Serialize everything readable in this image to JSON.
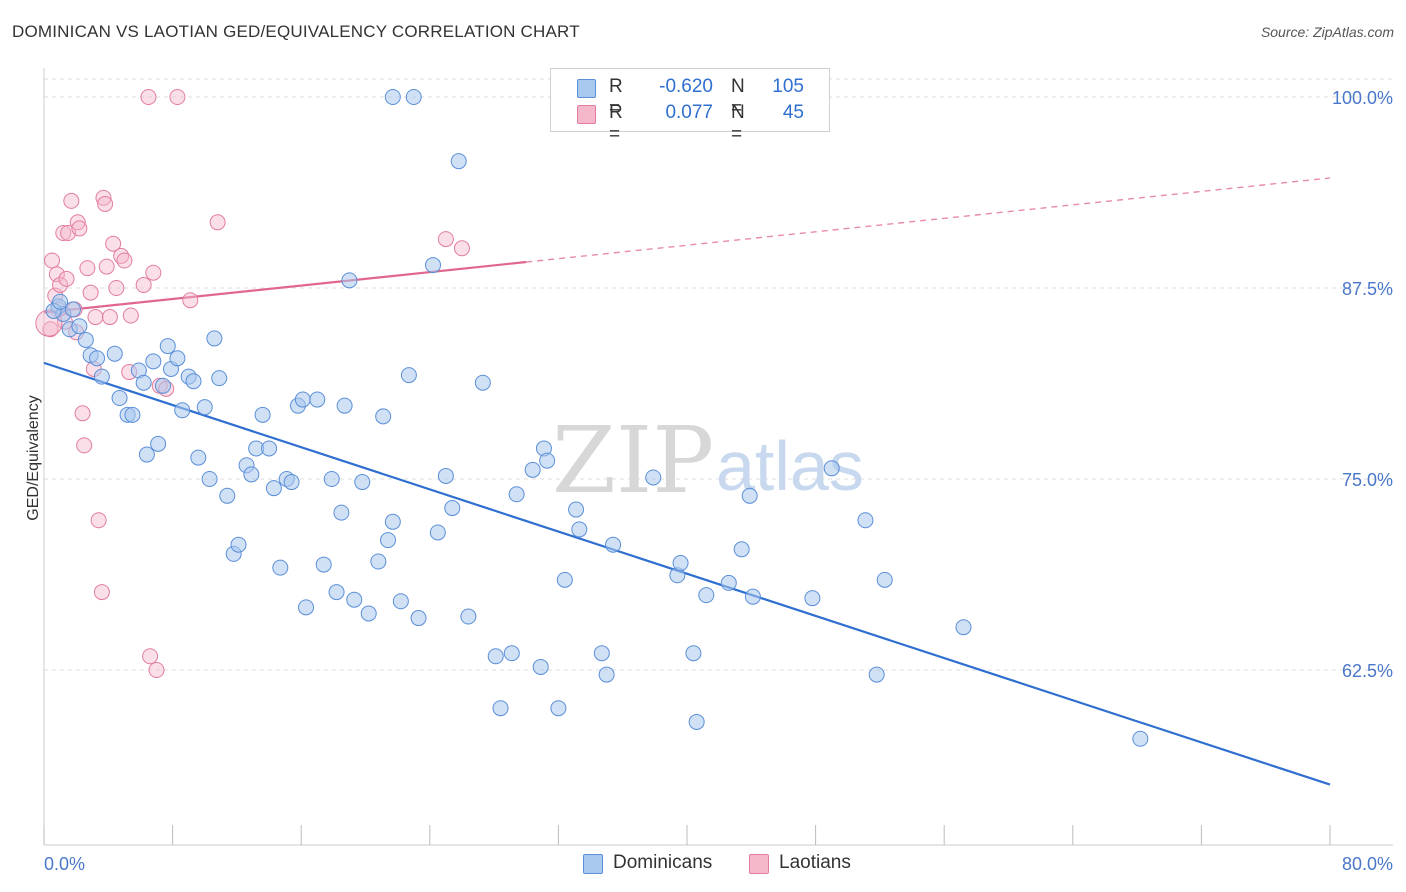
{
  "title": "DOMINICAN VS LAOTIAN GED/EQUIVALENCY CORRELATION CHART",
  "source": "Source: ZipAtlas.com",
  "watermark": {
    "zip": "ZIP",
    "atlas": "atlas"
  },
  "legend": {
    "rows": [
      {
        "r_label": "R =",
        "r_value": "-0.620",
        "n_label": "N =",
        "n_value": "105",
        "color": "#a9c8ee"
      },
      {
        "r_label": "R =",
        "r_value": "0.077",
        "n_label": "N =",
        "n_value": "45",
        "color": "#f5b8cb"
      }
    ]
  },
  "bottom_legend": [
    {
      "label": "Dominicans",
      "color": "#a9c8ee"
    },
    {
      "label": "Laotians",
      "color": "#f5b8cb"
    }
  ],
  "chart_data": {
    "type": "scatter",
    "title": "DOMINICAN VS LAOTIAN GED/EQUIVALENCY CORRELATION CHART",
    "xlabel": "",
    "ylabel": "GED/Equivalency",
    "xlim": [
      0,
      80
    ],
    "ylim": [
      51.5,
      101
    ],
    "x_tick_labels": [
      "0.0%",
      "80.0%"
    ],
    "y_ticks": [
      62.5,
      75.0,
      87.5,
      100.0
    ],
    "y_tick_labels": [
      "62.5%",
      "75.0%",
      "87.5%",
      "100.0%"
    ],
    "grid": true,
    "legend_placement": "top-center",
    "series": [
      {
        "name": "Dominicans",
        "color": "#a9c8ee",
        "R": -0.62,
        "N": 105,
        "trend": {
          "x0": 0,
          "y0": 82.6,
          "x1": 80,
          "y1": 55.0
        },
        "points": [
          [
            0.9,
            86.3
          ],
          [
            1.2,
            85.8
          ],
          [
            1.6,
            84.8
          ],
          [
            1.8,
            86.1
          ],
          [
            2.2,
            85.0
          ],
          [
            2.6,
            84.1
          ],
          [
            2.9,
            83.1
          ],
          [
            3.3,
            82.9
          ],
          [
            3.6,
            81.7
          ],
          [
            4.4,
            83.2
          ],
          [
            4.7,
            80.3
          ],
          [
            5.2,
            79.2
          ],
          [
            5.5,
            79.2
          ],
          [
            5.9,
            82.1
          ],
          [
            6.2,
            81.3
          ],
          [
            6.4,
            76.6
          ],
          [
            6.8,
            82.7
          ],
          [
            7.1,
            77.3
          ],
          [
            7.4,
            81.1
          ],
          [
            7.7,
            83.7
          ],
          [
            7.9,
            82.2
          ],
          [
            8.3,
            82.9
          ],
          [
            8.6,
            79.5
          ],
          [
            9.0,
            81.7
          ],
          [
            9.3,
            81.4
          ],
          [
            9.6,
            76.4
          ],
          [
            10.0,
            79.7
          ],
          [
            10.3,
            75.0
          ],
          [
            10.6,
            84.2
          ],
          [
            10.9,
            81.6
          ],
          [
            11.4,
            73.9
          ],
          [
            11.8,
            70.1
          ],
          [
            12.1,
            70.7
          ],
          [
            12.6,
            75.9
          ],
          [
            12.9,
            75.3
          ],
          [
            13.2,
            77.0
          ],
          [
            13.6,
            79.2
          ],
          [
            14.0,
            77.0
          ],
          [
            14.3,
            74.4
          ],
          [
            14.7,
            69.2
          ],
          [
            15.1,
            75.0
          ],
          [
            15.4,
            74.8
          ],
          [
            15.8,
            79.8
          ],
          [
            16.1,
            80.2
          ],
          [
            16.3,
            66.6
          ],
          [
            17.0,
            80.2
          ],
          [
            17.4,
            69.4
          ],
          [
            17.9,
            75.0
          ],
          [
            18.2,
            67.6
          ],
          [
            18.5,
            72.8
          ],
          [
            18.7,
            79.8
          ],
          [
            19.3,
            67.1
          ],
          [
            19.8,
            74.8
          ],
          [
            20.2,
            66.2
          ],
          [
            20.8,
            69.6
          ],
          [
            21.1,
            79.1
          ],
          [
            21.4,
            71.0
          ],
          [
            21.7,
            72.2
          ],
          [
            22.2,
            67.0
          ],
          [
            22.7,
            81.8
          ],
          [
            23.3,
            65.9
          ],
          [
            24.5,
            71.5
          ],
          [
            25.0,
            75.2
          ],
          [
            25.4,
            73.1
          ],
          [
            26.4,
            66.0
          ],
          [
            27.3,
            81.3
          ],
          [
            28.1,
            63.4
          ],
          [
            28.4,
            60.0
          ],
          [
            29.1,
            63.6
          ],
          [
            29.4,
            74.0
          ],
          [
            30.4,
            75.6
          ],
          [
            30.9,
            62.7
          ],
          [
            31.1,
            77.0
          ],
          [
            31.3,
            76.2
          ],
          [
            32.0,
            60.0
          ],
          [
            32.4,
            68.4
          ],
          [
            33.1,
            73.0
          ],
          [
            33.3,
            71.7
          ],
          [
            34.7,
            63.6
          ],
          [
            35.0,
            62.2
          ],
          [
            35.4,
            70.7
          ],
          [
            37.9,
            75.1
          ],
          [
            39.4,
            68.7
          ],
          [
            39.6,
            69.5
          ],
          [
            40.4,
            63.6
          ],
          [
            40.6,
            59.1
          ],
          [
            41.2,
            67.4
          ],
          [
            42.6,
            68.2
          ],
          [
            43.4,
            70.4
          ],
          [
            43.9,
            73.9
          ],
          [
            44.1,
            67.3
          ],
          [
            47.8,
            67.2
          ],
          [
            49.0,
            75.7
          ],
          [
            51.1,
            72.3
          ],
          [
            51.8,
            62.2
          ],
          [
            52.3,
            68.4
          ],
          [
            57.2,
            65.3
          ],
          [
            68.2,
            58.0
          ],
          [
            21.7,
            100.0
          ],
          [
            23.0,
            100.0
          ],
          [
            25.8,
            95.8
          ],
          [
            19.0,
            88.0
          ],
          [
            0.6,
            86.0
          ],
          [
            1.0,
            86.6
          ],
          [
            24.2,
            89.0
          ]
        ]
      },
      {
        "name": "Laotians",
        "color": "#f5b8cb",
        "R": 0.077,
        "N": 45,
        "trend": {
          "x0": 0,
          "y0": 85.9,
          "x1": 30,
          "y1": 89.2,
          "dash_x1": 80,
          "dash_y1": 94.7
        },
        "points": [
          [
            0.4,
            84.8
          ],
          [
            0.5,
            89.3
          ],
          [
            0.7,
            87.0
          ],
          [
            0.8,
            88.4
          ],
          [
            1.0,
            87.7
          ],
          [
            1.2,
            91.1
          ],
          [
            1.4,
            88.1
          ],
          [
            1.5,
            91.1
          ],
          [
            1.7,
            93.2
          ],
          [
            1.9,
            86.1
          ],
          [
            2.1,
            91.8
          ],
          [
            2.2,
            91.4
          ],
          [
            2.4,
            79.3
          ],
          [
            2.5,
            77.2
          ],
          [
            2.7,
            88.8
          ],
          [
            2.9,
            87.2
          ],
          [
            3.2,
            85.6
          ],
          [
            3.4,
            72.3
          ],
          [
            3.6,
            67.6
          ],
          [
            3.7,
            93.4
          ],
          [
            3.8,
            93.0
          ],
          [
            3.9,
            88.9
          ],
          [
            4.1,
            85.6
          ],
          [
            4.3,
            90.4
          ],
          [
            4.5,
            87.5
          ],
          [
            4.8,
            89.6
          ],
          [
            5.0,
            89.3
          ],
          [
            5.3,
            82.0
          ],
          [
            5.4,
            85.7
          ],
          [
            6.2,
            87.7
          ],
          [
            6.6,
            63.4
          ],
          [
            6.8,
            88.5
          ],
          [
            7.0,
            62.5
          ],
          [
            7.2,
            81.1
          ],
          [
            7.6,
            80.9
          ],
          [
            9.1,
            86.7
          ],
          [
            10.8,
            91.8
          ],
          [
            6.5,
            100.0
          ],
          [
            8.3,
            100.0
          ],
          [
            25.0,
            90.7
          ],
          [
            26.0,
            90.1
          ],
          [
            3.1,
            82.2
          ],
          [
            0.9,
            86.1
          ],
          [
            2.0,
            84.6
          ],
          [
            1.3,
            85.3
          ]
        ]
      }
    ]
  }
}
